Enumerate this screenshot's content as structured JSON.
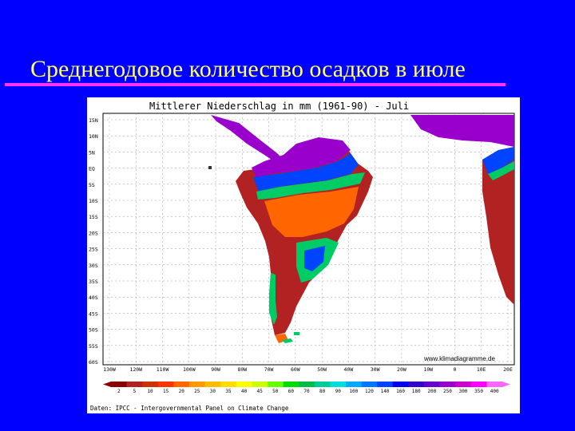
{
  "slide": {
    "title": "Среднегодовое количество осадков в июле"
  },
  "map": {
    "title": "Mittlerer Niederschlag in mm (1961-90) - Juli",
    "watermark": "www.klimadiagramme.de",
    "source": "Daten: IPCC - Intergovernmental Panel on Climate Change",
    "lat_labels": [
      "15N",
      "10N",
      "5N",
      "EQ",
      "5S",
      "10S",
      "15S",
      "20S",
      "25S",
      "30S",
      "35S",
      "40S",
      "45S",
      "50S",
      "55S",
      "60S"
    ],
    "lon_labels": [
      "130W",
      "120W",
      "110W",
      "100W",
      "90W",
      "80W",
      "70W",
      "60W",
      "50W",
      "40W",
      "30W",
      "20W",
      "10W",
      "0",
      "10E",
      "20E"
    ],
    "legend": {
      "values": [
        "2",
        "5",
        "10",
        "15",
        "20",
        "25",
        "30",
        "35",
        "40",
        "45",
        "50",
        "60",
        "70",
        "80",
        "90",
        "100",
        "120",
        "140",
        "160",
        "180",
        "200",
        "250",
        "300",
        "350",
        "400"
      ],
      "colors": [
        "#8b0000",
        "#b22222",
        "#cc3300",
        "#ff3300",
        "#ff6600",
        "#ff9900",
        "#ffbb00",
        "#ffdd00",
        "#ffff00",
        "#ccff00",
        "#66ff00",
        "#00dd00",
        "#00bb44",
        "#00cc99",
        "#00dddd",
        "#00aaff",
        "#0077ff",
        "#0044ff",
        "#0000ee",
        "#3300cc",
        "#6600cc",
        "#9900cc",
        "#cc00cc",
        "#ff00ff",
        "#ff66ff"
      ]
    },
    "colors": {
      "dry": "#b22222",
      "semi_dry": "#ff6600",
      "moderate": "#ffdd00",
      "humid": "#00cc66",
      "wet": "#0044ff",
      "very_wet": "#9900cc"
    }
  }
}
